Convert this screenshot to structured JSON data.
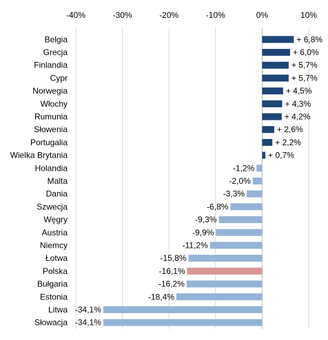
{
  "chart_data": {
    "type": "bar",
    "orientation": "horizontal",
    "title": "",
    "xlabel": "",
    "ylabel": "",
    "xlim": [
      -40,
      10
    ],
    "x_ticks": [
      -40,
      -30,
      -20,
      -10,
      0,
      10
    ],
    "x_tick_labels": [
      "-40%",
      "-30%",
      "-20%",
      "-10%",
      "0%",
      "10%"
    ],
    "grid": "vertical",
    "legend": "none",
    "categories": [
      "Belgia",
      "Grecja",
      "Finlandia",
      "Cypr",
      "Norwegia",
      "Włochy",
      "Rumunia",
      "Słowenia",
      "Portugalia",
      "Wielka Brytania",
      "Holandia",
      "Malta",
      "Dania",
      "Szwecja",
      "Węgry",
      "Austria",
      "Niemcy",
      "Łotwa",
      "Polska",
      "Bułgaria",
      "Estonia",
      "Litwa",
      "Słowacja"
    ],
    "values": [
      6.8,
      6.0,
      5.7,
      5.7,
      4.5,
      4.3,
      4.2,
      2.6,
      2.2,
      0.7,
      -1.2,
      -2.0,
      -3.3,
      -6.8,
      -9.3,
      -9.9,
      -11.2,
      -15.8,
      -16.1,
      -16.2,
      -18.4,
      -34.1,
      -34.1
    ],
    "value_labels": [
      "+ 6,8%",
      "+ 6,0%",
      "+ 5,7%",
      "+ 5,7%",
      "+ 4,5%",
      "+ 4,3%",
      "+ 4,2%",
      "+ 2,6%",
      "+ 2,2%",
      "+ 0,7%",
      "-1,2%",
      "-2,0%",
      "-3,3%",
      "-6,8%",
      "-9,3%",
      "-9,9%",
      "-11,2%",
      "-15,8%",
      "-16,1%",
      "-16,2%",
      "-18,4%",
      "-34,1%",
      "-34,1%"
    ],
    "colors": {
      "positive": "#1f4577",
      "negative": "#95b3d7",
      "highlight": "#d99694",
      "grid": "#d9d9d9"
    },
    "highlight_category": "Polska"
  }
}
